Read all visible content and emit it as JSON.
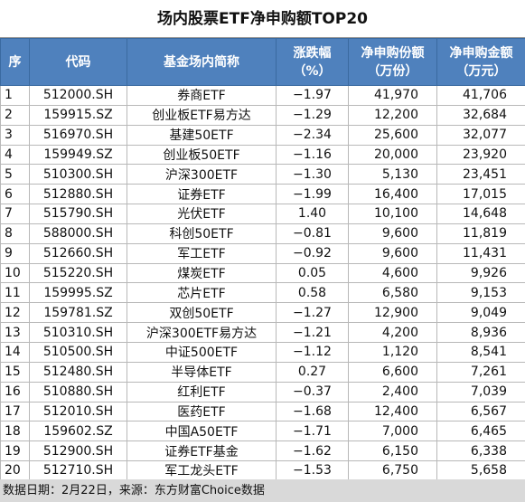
{
  "title": "场内股票ETF净申购额TOP20",
  "table": {
    "headers": [
      [
        "序"
      ],
      [
        "代码"
      ],
      [
        "基金场内简称"
      ],
      [
        "涨跌幅",
        "（%）"
      ],
      [
        "净申购份额",
        "（万份）"
      ],
      [
        "净申购金额",
        "（万元）"
      ]
    ],
    "rows": [
      [
        "1",
        "512000.SH",
        "券商ETF",
        "−1.97",
        "41,970",
        "41,706"
      ],
      [
        "2",
        "159915.SZ",
        "创业板ETF易方达",
        "−1.29",
        "12,200",
        "32,684"
      ],
      [
        "3",
        "516970.SH",
        "基建50ETF",
        "−2.34",
        "25,600",
        "32,077"
      ],
      [
        "4",
        "159949.SZ",
        "创业板50ETF",
        "−1.16",
        "20,000",
        "23,920"
      ],
      [
        "5",
        "510300.SH",
        "沪深300ETF",
        "−1.30",
        "5,130",
        "23,451"
      ],
      [
        "6",
        "512880.SH",
        "证券ETF",
        "−1.99",
        "16,400",
        "17,015"
      ],
      [
        "7",
        "515790.SH",
        "光伏ETF",
        "1.40",
        "10,100",
        "14,648"
      ],
      [
        "8",
        "588000.SH",
        "科创50ETF",
        "−0.81",
        "9,600",
        "11,819"
      ],
      [
        "9",
        "512660.SH",
        "军工ETF",
        "−0.92",
        "9,600",
        "11,431"
      ],
      [
        "10",
        "515220.SH",
        "煤炭ETF",
        "0.05",
        "4,600",
        "9,926"
      ],
      [
        "11",
        "159995.SZ",
        "芯片ETF",
        "0.58",
        "6,580",
        "9,153"
      ],
      [
        "12",
        "159781.SZ",
        "双创50ETF",
        "−1.27",
        "12,900",
        "9,049"
      ],
      [
        "13",
        "510310.SH",
        "沪深300ETF易方达",
        "−1.21",
        "4,200",
        "8,936"
      ],
      [
        "14",
        "510500.SH",
        "中证500ETF",
        "−1.12",
        "1,120",
        "8,541"
      ],
      [
        "15",
        "512480.SH",
        "半导体ETF",
        "0.27",
        "6,600",
        "7,261"
      ],
      [
        "16",
        "510880.SH",
        "红利ETF",
        "−0.37",
        "2,400",
        "7,039"
      ],
      [
        "17",
        "512010.SH",
        "医药ETF",
        "−1.68",
        "12,400",
        "6,567"
      ],
      [
        "18",
        "159602.SZ",
        "中国A50ETF",
        "−1.71",
        "7,000",
        "6,465"
      ],
      [
        "19",
        "512900.SH",
        "证券ETF基金",
        "−1.62",
        "6,150",
        "6,338"
      ],
      [
        "20",
        "512710.SH",
        "军工龙头ETF",
        "−1.53",
        "6,750",
        "5,658"
      ]
    ]
  },
  "footer": "数据日期：2月22日，来源：东方财富Choice数据"
}
